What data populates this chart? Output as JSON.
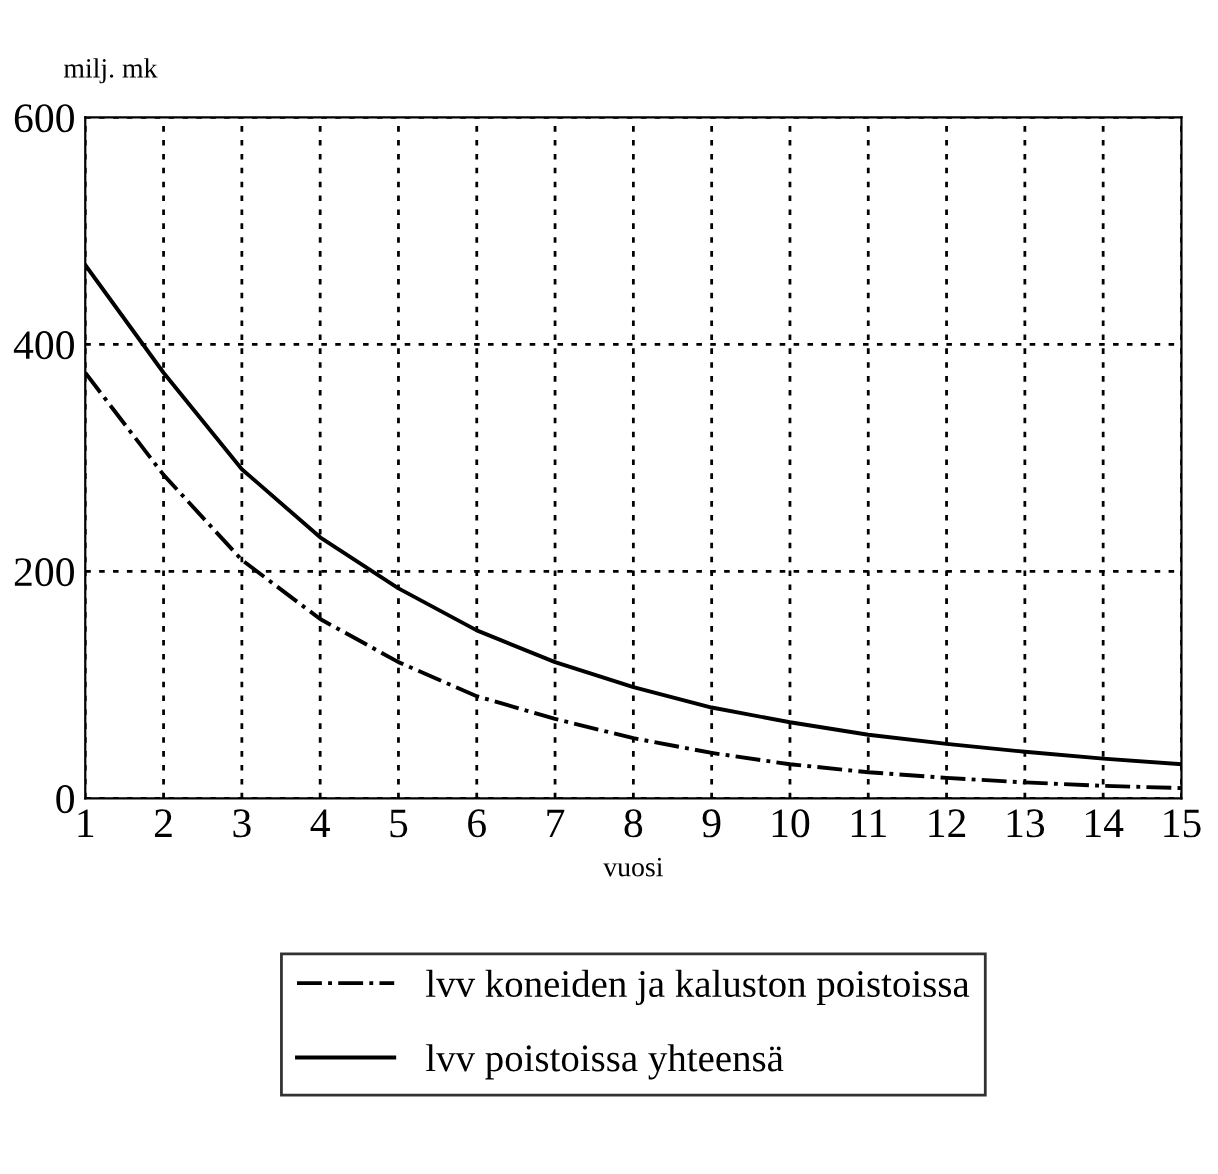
{
  "chart_data": {
    "type": "line",
    "xlabel": "vuosi",
    "ylabel": "milj. mk",
    "x": [
      1,
      2,
      3,
      4,
      5,
      6,
      7,
      8,
      9,
      10,
      11,
      12,
      13,
      14,
      15
    ],
    "series": [
      {
        "name": "lvv koneiden ja kaluston poistoissa",
        "color": "#000000",
        "line_style": "dashdot",
        "values": [
          375,
          285,
          210,
          158,
          120,
          90,
          70,
          53,
          40,
          30,
          23,
          18,
          14,
          11,
          9
        ]
      },
      {
        "name": "lvv poistoissa yhteensä",
        "color": "#000000",
        "line_style": "solid",
        "values": [
          470,
          375,
          290,
          230,
          185,
          148,
          120,
          98,
          80,
          67,
          56,
          48,
          41,
          35,
          30
        ]
      }
    ],
    "xlim": [
      1,
      15
    ],
    "ylim": [
      0,
      600
    ],
    "xticks": [
      1,
      2,
      3,
      4,
      5,
      6,
      7,
      8,
      9,
      10,
      11,
      12,
      13,
      14,
      15
    ],
    "yticks": [
      0,
      200,
      400,
      600
    ],
    "grid": true,
    "legend": "bottom",
    "marker": "none"
  }
}
